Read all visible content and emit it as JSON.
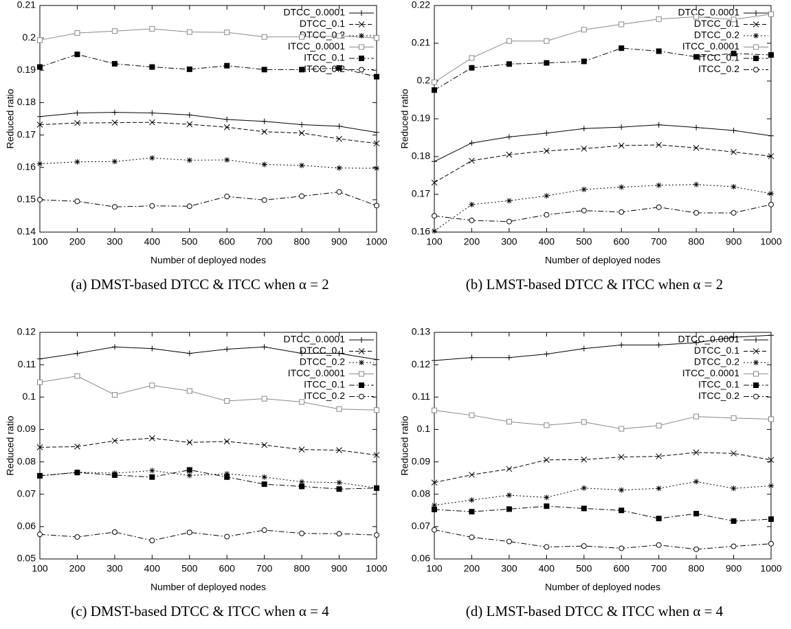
{
  "chart_data": [
    {
      "type": "line",
      "caption": "(a) DMST-based DTCC & ITCC when α = 2",
      "xlabel": "Number of deployed nodes",
      "ylabel": "Reduced ratio",
      "x": [
        100,
        200,
        300,
        400,
        500,
        600,
        700,
        800,
        900,
        1000
      ],
      "xlim": [
        100,
        1000
      ],
      "xticks": [
        100,
        200,
        300,
        400,
        500,
        600,
        700,
        800,
        900,
        1000
      ],
      "ylim": [
        0.14,
        0.21
      ],
      "yticks": [
        0.14,
        0.15,
        0.16,
        0.17,
        0.18,
        0.19,
        0.2,
        0.21
      ],
      "legend": "top-right",
      "series": [
        {
          "name": "DTCC_0.0001",
          "color": "#000000",
          "dash": "solid",
          "marker": "plus",
          "values": [
            0.1757,
            0.1768,
            0.177,
            0.1768,
            0.1762,
            0.1748,
            0.1742,
            0.1732,
            0.1727,
            0.1708
          ]
        },
        {
          "name": "DTCC_0.1",
          "color": "#000000",
          "dash": "dashed",
          "marker": "cross",
          "values": [
            0.1732,
            0.1737,
            0.1738,
            0.1739,
            0.1733,
            0.1724,
            0.171,
            0.1706,
            0.1688,
            0.1674
          ]
        },
        {
          "name": "DTCC_0.2",
          "color": "#000000",
          "dash": "dotted",
          "marker": "star",
          "values": [
            0.1611,
            0.1617,
            0.1618,
            0.1629,
            0.1622,
            0.1623,
            0.1609,
            0.1606,
            0.1598,
            0.1597
          ]
        },
        {
          "name": "ITCC_0.0001",
          "color": "#888888",
          "dash": "solid",
          "marker": "square-open",
          "values": [
            0.1993,
            0.2015,
            0.2021,
            0.2028,
            0.2018,
            0.2017,
            0.2003,
            0.2003,
            0.2006,
            0.2
          ]
        },
        {
          "name": "ITCC_0.1",
          "color": "#000000",
          "dash": "dashdot",
          "marker": "square-filled",
          "values": [
            0.191,
            0.1949,
            0.192,
            0.191,
            0.1903,
            0.1914,
            0.1902,
            0.1902,
            0.1907,
            0.188
          ]
        },
        {
          "name": "ITCC_0.2",
          "color": "#000000",
          "dash": "dashdot",
          "marker": "circle-open",
          "values": [
            0.15,
            0.1495,
            0.1478,
            0.1481,
            0.148,
            0.151,
            0.1499,
            0.1511,
            0.1524,
            0.1482
          ]
        }
      ]
    },
    {
      "type": "line",
      "caption": "(b) LMST-based DTCC & ITCC when α = 2",
      "xlabel": "Number of deployed nodes",
      "ylabel": "Reduced ratio",
      "x": [
        100,
        200,
        300,
        400,
        500,
        600,
        700,
        800,
        900,
        1000
      ],
      "xlim": [
        100,
        1000
      ],
      "xticks": [
        100,
        200,
        300,
        400,
        500,
        600,
        700,
        800,
        900,
        1000
      ],
      "ylim": [
        0.16,
        0.22
      ],
      "yticks": [
        0.16,
        0.17,
        0.18,
        0.19,
        0.2,
        0.21,
        0.22
      ],
      "legend": "top-right",
      "series": [
        {
          "name": "DTCC_0.0001",
          "color": "#000000",
          "dash": "solid",
          "marker": "plus",
          "values": [
            0.1787,
            0.1836,
            0.1852,
            0.1862,
            0.1874,
            0.1878,
            0.1884,
            0.1877,
            0.1869,
            0.1855
          ]
        },
        {
          "name": "DTCC_0.1",
          "color": "#000000",
          "dash": "dashed",
          "marker": "cross",
          "values": [
            0.1731,
            0.1789,
            0.1805,
            0.1815,
            0.1821,
            0.1829,
            0.1831,
            0.1823,
            0.1812,
            0.1801
          ]
        },
        {
          "name": "DTCC_0.2",
          "color": "#000000",
          "dash": "dotted",
          "marker": "star",
          "values": [
            0.1603,
            0.1673,
            0.1683,
            0.1696,
            0.1713,
            0.1719,
            0.1724,
            0.1726,
            0.172,
            0.1702
          ]
        },
        {
          "name": "ITCC_0.0001",
          "color": "#888888",
          "dash": "solid",
          "marker": "square-open",
          "values": [
            0.1997,
            0.2061,
            0.2106,
            0.2106,
            0.2136,
            0.215,
            0.2164,
            0.217,
            0.2163,
            0.2177
          ]
        },
        {
          "name": "ITCC_0.1",
          "color": "#000000",
          "dash": "dashdot",
          "marker": "square-filled",
          "values": [
            0.1976,
            0.2035,
            0.2045,
            0.2048,
            0.2052,
            0.2087,
            0.2079,
            0.2064,
            0.2073,
            0.2069
          ]
        },
        {
          "name": "ITCC_0.2",
          "color": "#000000",
          "dash": "dashdot",
          "marker": "circle-open",
          "values": [
            0.1643,
            0.1631,
            0.1628,
            0.1646,
            0.1657,
            0.1653,
            0.1666,
            0.1651,
            0.1651,
            0.1673
          ]
        }
      ]
    },
    {
      "type": "line",
      "caption": "(c) DMST-based DTCC & ITCC when α = 4",
      "xlabel": "Number of deployed nodes",
      "ylabel": "Reduced ratio",
      "x": [
        100,
        200,
        300,
        400,
        500,
        600,
        700,
        800,
        900,
        1000
      ],
      "xlim": [
        100,
        1000
      ],
      "xticks": [
        100,
        200,
        300,
        400,
        500,
        600,
        700,
        800,
        900,
        1000
      ],
      "ylim": [
        0.05,
        0.12
      ],
      "yticks": [
        0.05,
        0.06,
        0.07,
        0.08,
        0.09,
        0.1,
        0.11,
        0.12
      ],
      "legend": "top-right",
      "series": [
        {
          "name": "DTCC_0.0001",
          "color": "#000000",
          "dash": "solid",
          "marker": "plus",
          "values": [
            0.1118,
            0.1135,
            0.1155,
            0.115,
            0.1135,
            0.1148,
            0.1155,
            0.1135,
            0.1135,
            0.1116
          ]
        },
        {
          "name": "DTCC_0.1",
          "color": "#000000",
          "dash": "dashed",
          "marker": "cross",
          "values": [
            0.0845,
            0.0847,
            0.0865,
            0.0873,
            0.086,
            0.0863,
            0.0852,
            0.0838,
            0.0836,
            0.0821
          ]
        },
        {
          "name": "DTCC_0.2",
          "color": "#000000",
          "dash": "dotted",
          "marker": "star",
          "values": [
            0.0757,
            0.0768,
            0.0765,
            0.0773,
            0.0758,
            0.0763,
            0.0753,
            0.0738,
            0.0736,
            0.0719
          ]
        },
        {
          "name": "ITCC_0.0001",
          "color": "#888888",
          "dash": "solid",
          "marker": "square-open",
          "values": [
            0.1046,
            0.1065,
            0.1007,
            0.1036,
            0.1019,
            0.0988,
            0.0995,
            0.0985,
            0.0963,
            0.096
          ]
        },
        {
          "name": "ITCC_0.1",
          "color": "#000000",
          "dash": "dashdot",
          "marker": "square-filled",
          "values": [
            0.0757,
            0.0767,
            0.0759,
            0.0753,
            0.0775,
            0.0753,
            0.0731,
            0.0724,
            0.0716,
            0.0719
          ]
        },
        {
          "name": "ITCC_0.2",
          "color": "#000000",
          "dash": "dashdot",
          "marker": "circle-open",
          "values": [
            0.0576,
            0.0568,
            0.0583,
            0.0557,
            0.0582,
            0.0569,
            0.0589,
            0.0579,
            0.0578,
            0.0574
          ]
        }
      ]
    },
    {
      "type": "line",
      "caption": "(d) LMST-based DTCC & ITCC when α = 4",
      "xlabel": "Number of deployed nodes",
      "ylabel": "Reduced ratio",
      "x": [
        100,
        200,
        300,
        400,
        500,
        600,
        700,
        800,
        900,
        1000
      ],
      "xlim": [
        100,
        1000
      ],
      "xticks": [
        100,
        200,
        300,
        400,
        500,
        600,
        700,
        800,
        900,
        1000
      ],
      "ylim": [
        0.06,
        0.13
      ],
      "yticks": [
        0.06,
        0.07,
        0.08,
        0.09,
        0.1,
        0.11,
        0.12,
        0.13
      ],
      "legend": "top-right",
      "series": [
        {
          "name": "DTCC_0.0001",
          "color": "#000000",
          "dash": "solid",
          "marker": "plus",
          "values": [
            0.1213,
            0.1222,
            0.1222,
            0.1233,
            0.125,
            0.1261,
            0.1261,
            0.1268,
            0.1285,
            0.1291
          ]
        },
        {
          "name": "DTCC_0.1",
          "color": "#000000",
          "dash": "dashed",
          "marker": "cross",
          "values": [
            0.0836,
            0.086,
            0.0878,
            0.0906,
            0.0907,
            0.0915,
            0.0917,
            0.0929,
            0.0926,
            0.0906
          ]
        },
        {
          "name": "DTCC_0.2",
          "color": "#000000",
          "dash": "dotted",
          "marker": "star",
          "values": [
            0.0766,
            0.0782,
            0.0797,
            0.079,
            0.0819,
            0.0813,
            0.0818,
            0.0839,
            0.0818,
            0.0826
          ]
        },
        {
          "name": "ITCC_0.0001",
          "color": "#888888",
          "dash": "solid",
          "marker": "square-open",
          "values": [
            0.1059,
            0.1044,
            0.1024,
            0.1013,
            0.1023,
            0.1002,
            0.1012,
            0.104,
            0.1035,
            0.1032
          ]
        },
        {
          "name": "ITCC_0.1",
          "color": "#000000",
          "dash": "dashdot",
          "marker": "square-filled",
          "values": [
            0.0753,
            0.0746,
            0.0754,
            0.0763,
            0.0756,
            0.075,
            0.0725,
            0.074,
            0.0717,
            0.0723
          ]
        },
        {
          "name": "ITCC_0.2",
          "color": "#000000",
          "dash": "dashdot",
          "marker": "circle-open",
          "values": [
            0.069,
            0.0667,
            0.0654,
            0.0637,
            0.064,
            0.0633,
            0.0643,
            0.063,
            0.0639,
            0.0647
          ]
        }
      ]
    }
  ]
}
